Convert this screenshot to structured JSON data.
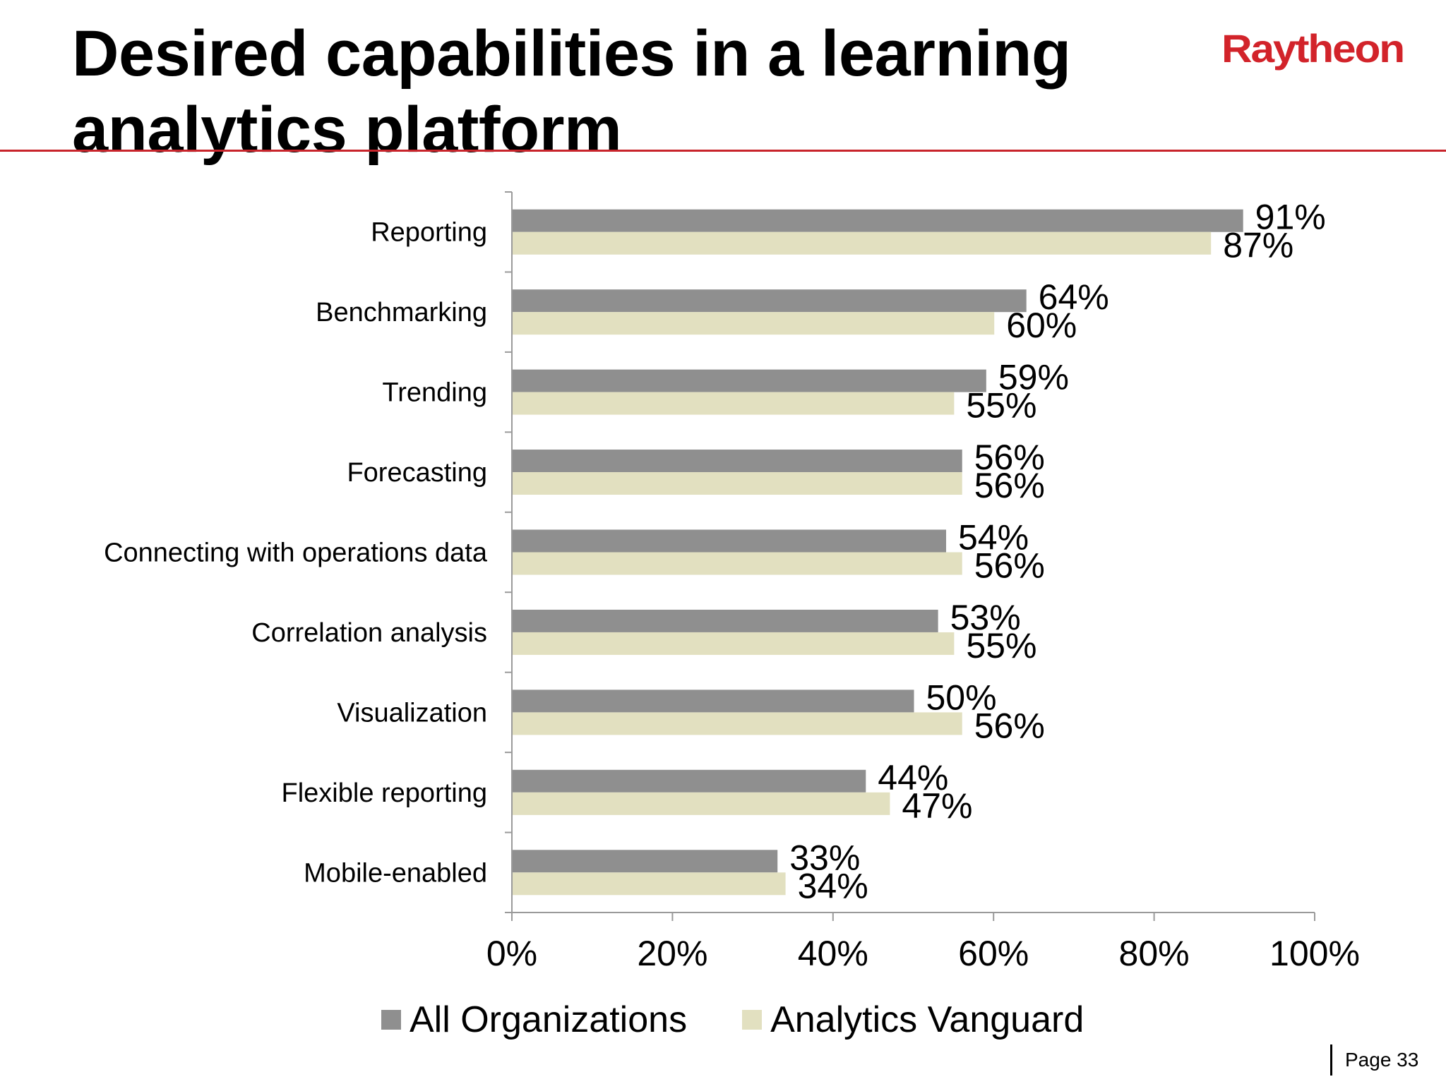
{
  "slide": {
    "title_line1": "Desired capabilities in a learning",
    "title_line2": "analytics platform",
    "logo_text": "Raytheon",
    "page_label": "Page 33",
    "brand_color": "#c8242b"
  },
  "chart_data": {
    "type": "bar",
    "orientation": "horizontal",
    "categories": [
      "Reporting",
      "Benchmarking",
      "Trending",
      "Forecasting",
      "Connecting with operations data",
      "Correlation analysis",
      "Visualization",
      "Flexible reporting",
      "Mobile-enabled"
    ],
    "series": [
      {
        "name": "All Organizations",
        "color": "#8f8f8f",
        "values": [
          91,
          64,
          59,
          56,
          54,
          53,
          50,
          44,
          33
        ]
      },
      {
        "name": "Analytics Vanguard",
        "color": "#e2e0c0",
        "values": [
          87,
          60,
          55,
          56,
          56,
          55,
          56,
          47,
          34
        ]
      }
    ],
    "value_labels": [
      [
        "91%",
        "64%",
        "59%",
        "56%",
        "54%",
        "53%",
        "50%",
        "44%",
        "33%"
      ],
      [
        "87%",
        "60%",
        "55%",
        "56%",
        "56%",
        "55%",
        "56%",
        "47%",
        "34%"
      ]
    ],
    "x_ticks": [
      "0%",
      "20%",
      "40%",
      "60%",
      "80%",
      "100%"
    ],
    "xlim": [
      0,
      100
    ],
    "grid": false,
    "legend_position": "bottom"
  }
}
